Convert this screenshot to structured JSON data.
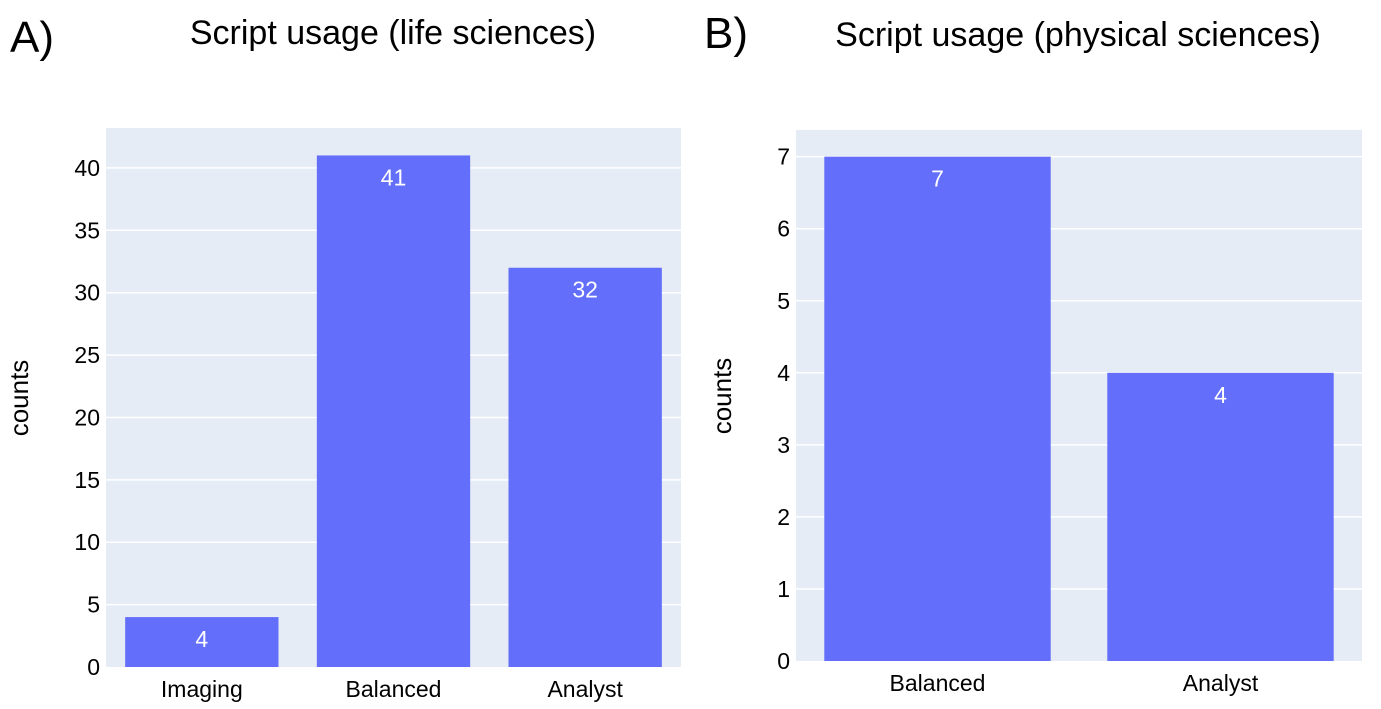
{
  "colors": {
    "plot_bg": "#E5ECF6",
    "bar": "#636EFA",
    "grid": "#ffffff",
    "bar_label": "#ffffff"
  },
  "chart_data": [
    {
      "type": "bar",
      "panel": "A)",
      "title": "Script usage (life sciences)",
      "xlabel": "",
      "ylabel": "counts",
      "categories": [
        "Imaging",
        "Balanced",
        "Analyst"
      ],
      "values": [
        4,
        41,
        32
      ],
      "ylim": [
        0,
        43.2
      ],
      "yticks": [
        0,
        5,
        10,
        15,
        20,
        25,
        30,
        35,
        40
      ],
      "grid": true,
      "legend": "none"
    },
    {
      "type": "bar",
      "panel": "B)",
      "title": "Script usage (physical sciences)",
      "xlabel": "",
      "ylabel": "counts",
      "categories": [
        "Balanced",
        "Analyst"
      ],
      "values": [
        7,
        4
      ],
      "ylim": [
        0,
        7.37
      ],
      "yticks": [
        0,
        1,
        2,
        3,
        4,
        5,
        6,
        7
      ],
      "grid": true,
      "legend": "none"
    }
  ]
}
